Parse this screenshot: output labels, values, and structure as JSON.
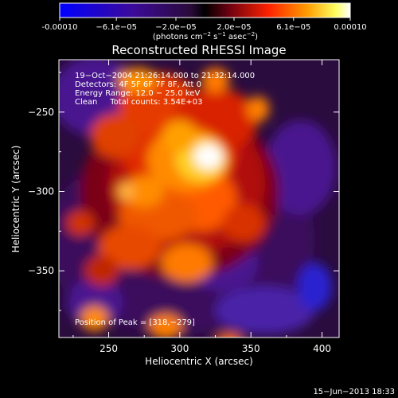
{
  "colorbar": {
    "tick_labels": [
      "-0.00010",
      "−6.1e−05",
      "−2.0e−05",
      "2.0e−05",
      "6.1e−05",
      "0.00010"
    ],
    "tick_values": [
      -0.0001,
      -6.1e-05,
      -2e-05,
      2e-05,
      6.1e-05,
      0.0001
    ],
    "range": [
      -0.0001,
      0.0001
    ],
    "units_prefix": "(photons cm",
    "units_exp1": "−2",
    "units_mid": " s",
    "units_exp2": "−1",
    "units_mid2": " asec",
    "units_exp3": "−2",
    "units_suffix": ")"
  },
  "chart_data": {
    "type": "heatmap",
    "title": "Reconstructed RHESSI Image",
    "xlabel": "Heliocentric X (arcsec)",
    "ylabel": "Heliocentric Y (arcsec)",
    "xlim": [
      215,
      412
    ],
    "ylim": [
      -392,
      -217
    ],
    "x_ticks": [
      250,
      300,
      350,
      400
    ],
    "y_ticks": [
      -250,
      -300,
      -350
    ],
    "x_tick_labels": [
      "250",
      "300",
      "350",
      "400"
    ],
    "y_tick_labels": [
      "−250",
      "−300",
      "−350"
    ],
    "colormap": "rhessi (blue-purple-red-orange-yellow-white)",
    "peak": [
      318,
      -279
    ],
    "annotations": [
      "19−Oct−2004 21:26:14.000 to 21:32:14.000",
      "Detectors: 4F 5F 6F 7F 8F, Att 0",
      "Energy Range: 12.0 − 25.0 keV",
      "Clean     Total counts: 3.54E+03"
    ],
    "peak_label": "Position of Peak = [318,−279]"
  },
  "footer": {
    "timestamp": "15−Jun−2013 18:33"
  }
}
